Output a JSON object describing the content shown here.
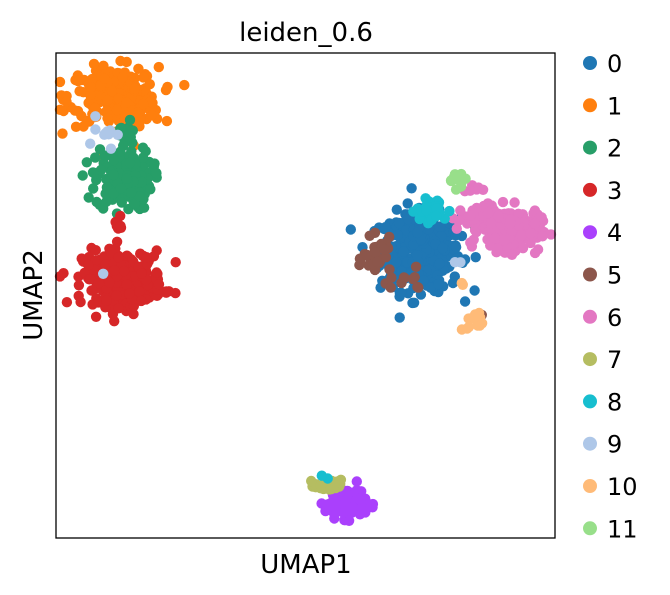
{
  "chart_data": {
    "type": "scatter",
    "title": "leiden_0.6",
    "xlabel": "UMAP1",
    "ylabel": "UMAP2",
    "xlim": [
      0,
      100
    ],
    "ylim": [
      0,
      100
    ],
    "ticks_shown": false,
    "grid": false,
    "legend_position": "right",
    "series": [
      {
        "name": "0",
        "color": "#1f77b4",
        "clusters": [
          {
            "cx": 73.0,
            "cy": 59.0,
            "sx": 4.0,
            "sy": 4.0,
            "n": 380
          },
          {
            "cx": 71.5,
            "cy": 62.0,
            "sx": 2.0,
            "sy": 2.0,
            "n": 30
          }
        ]
      },
      {
        "name": "1",
        "color": "#ff7f0e",
        "clusters": [
          {
            "cx": 11.5,
            "cy": 91.0,
            "sx": 4.5,
            "sy": 3.0,
            "n": 230
          },
          {
            "cx": 16.0,
            "cy": 88.0,
            "sx": 2.0,
            "sy": 2.5,
            "n": 40
          }
        ]
      },
      {
        "name": "2",
        "color": "#279e68",
        "clusters": [
          {
            "cx": 13.5,
            "cy": 74.0,
            "sx": 2.8,
            "sy": 3.2,
            "n": 170
          },
          {
            "cx": 14.0,
            "cy": 83.0,
            "sx": 1.0,
            "sy": 1.5,
            "n": 12
          },
          {
            "cx": 84.0,
            "cy": 64.0,
            "sx": 0.6,
            "sy": 0.6,
            "n": 3
          }
        ]
      },
      {
        "name": "3",
        "color": "#d62728",
        "clusters": [
          {
            "cx": 13.5,
            "cy": 53.5,
            "sx": 4.0,
            "sy": 2.8,
            "n": 260
          },
          {
            "cx": 13.0,
            "cy": 64.0,
            "sx": 0.6,
            "sy": 1.0,
            "n": 8
          }
        ]
      },
      {
        "name": "4",
        "color": "#aa40fc",
        "clusters": [
          {
            "cx": 58.0,
            "cy": 7.5,
            "sx": 2.0,
            "sy": 1.6,
            "n": 120
          }
        ]
      },
      {
        "name": "5",
        "color": "#8c564b",
        "clusters": [
          {
            "cx": 64.5,
            "cy": 57.5,
            "sx": 1.4,
            "sy": 2.0,
            "n": 35
          },
          {
            "cx": 70.0,
            "cy": 53.0,
            "sx": 2.5,
            "sy": 1.0,
            "n": 10
          },
          {
            "cx": 85.0,
            "cy": 46.0,
            "sx": 0.4,
            "sy": 0.4,
            "n": 2
          }
        ]
      },
      {
        "name": "6",
        "color": "#e377c2",
        "clusters": [
          {
            "cx": 91.0,
            "cy": 63.5,
            "sx": 3.0,
            "sy": 2.2,
            "n": 200
          },
          {
            "cx": 84.0,
            "cy": 66.0,
            "sx": 2.5,
            "sy": 1.2,
            "n": 45
          },
          {
            "cx": 83.5,
            "cy": 72.0,
            "sx": 0.8,
            "sy": 0.5,
            "n": 6
          }
        ]
      },
      {
        "name": "7",
        "color": "#b5bd61",
        "clusters": [
          {
            "cx": 54.5,
            "cy": 10.8,
            "sx": 1.3,
            "sy": 0.6,
            "n": 30
          }
        ]
      },
      {
        "name": "8",
        "color": "#17becf",
        "clusters": [
          {
            "cx": 75.5,
            "cy": 67.5,
            "sx": 1.6,
            "sy": 1.2,
            "n": 40
          },
          {
            "cx": 54.0,
            "cy": 12.3,
            "sx": 0.3,
            "sy": 0.3,
            "n": 2
          }
        ]
      },
      {
        "name": "9",
        "color": "#aec7e8",
        "clusters": [
          {
            "cx": 9.0,
            "cy": 84.0,
            "sx": 1.5,
            "sy": 2.0,
            "n": 10
          },
          {
            "cx": 9.5,
            "cy": 55.0,
            "sx": 0.3,
            "sy": 0.3,
            "n": 1
          },
          {
            "cx": 80.5,
            "cy": 57.0,
            "sx": 0.4,
            "sy": 0.4,
            "n": 2
          }
        ]
      },
      {
        "name": "10",
        "color": "#ffbb78",
        "clusters": [
          {
            "cx": 84.0,
            "cy": 44.5,
            "sx": 0.8,
            "sy": 1.0,
            "n": 15
          },
          {
            "cx": 81.5,
            "cy": 52.5,
            "sx": 0.4,
            "sy": 0.4,
            "n": 2
          }
        ]
      },
      {
        "name": "11",
        "color": "#98df8a",
        "clusters": [
          {
            "cx": 80.5,
            "cy": 74.0,
            "sx": 0.9,
            "sy": 0.9,
            "n": 14
          }
        ]
      }
    ]
  }
}
